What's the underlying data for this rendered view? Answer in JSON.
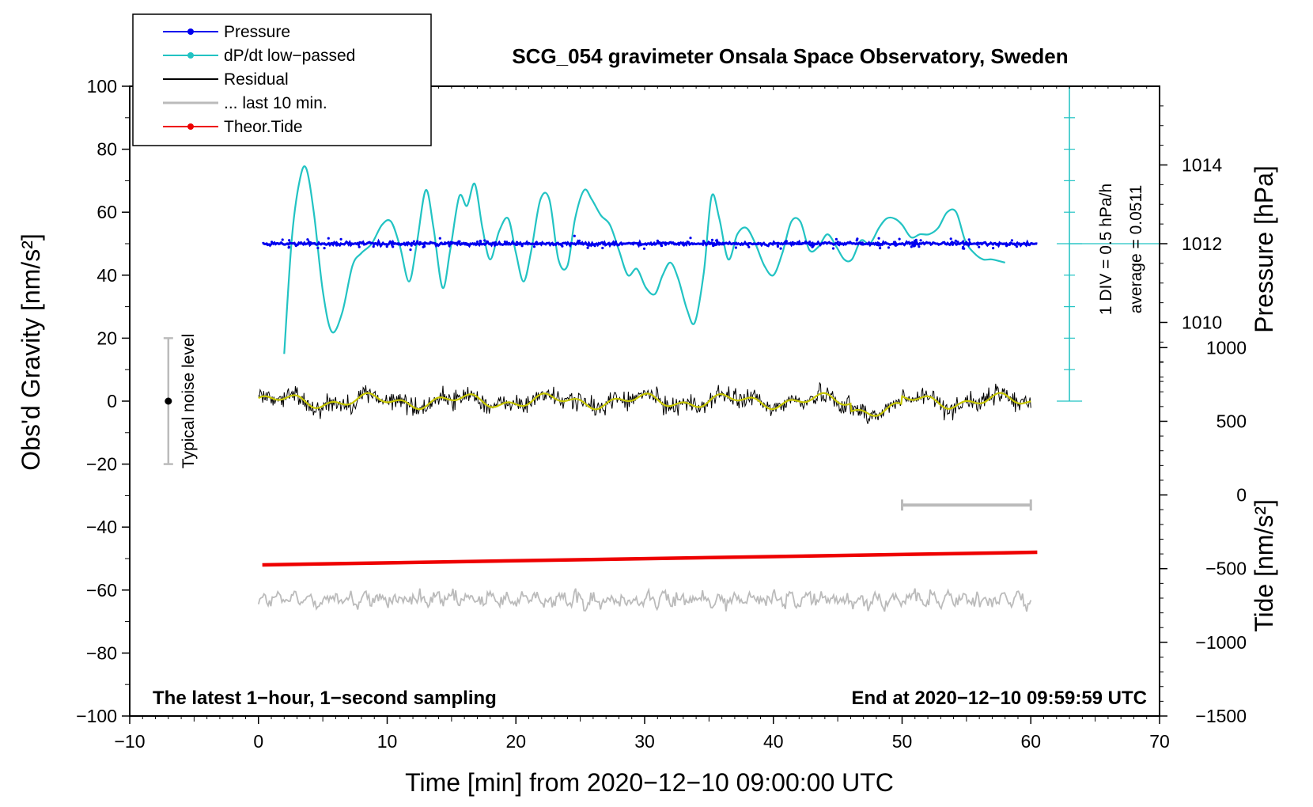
{
  "chart_data": {
    "type": "line",
    "title": "SCG_054 gravimeter Onsala Space Observatory, Sweden",
    "xlabel": "Time [min] from 2020−12−10 09:00:00 UTC",
    "ylabel_left": "Obs'd Gravity [nm/s²]",
    "ylabel_right_pressure": "Pressure [hPa]",
    "ylabel_right_tide": "Tide [nm/s²]",
    "xlim": [
      -10,
      70
    ],
    "ylim": [
      -100,
      100
    ],
    "x_ticks": [
      -10,
      0,
      10,
      20,
      30,
      40,
      50,
      60,
      70
    ],
    "x_tick_labels": [
      "−10",
      "0",
      "10",
      "20",
      "30",
      "40",
      "50",
      "60",
      "70"
    ],
    "y_ticks": [
      -100,
      -80,
      -60,
      -40,
      -20,
      0,
      20,
      40,
      60,
      80,
      100
    ],
    "y_tick_labels": [
      "−100",
      "−80",
      "−60",
      "−40",
      "−20",
      "0",
      "20",
      "40",
      "60",
      "80",
      "100"
    ],
    "pressure_axis": {
      "ticks": [
        1010,
        1012,
        1014
      ],
      "tick_labels": [
        "1010",
        "1012",
        "1014"
      ],
      "range": [
        1008,
        1016
      ]
    },
    "tide_axis": {
      "ticks": [
        -1500,
        -1000,
        -500,
        0,
        500,
        1000
      ],
      "tick_labels": [
        "−1500",
        "−1000",
        "−500",
        "0",
        "500",
        "1000"
      ],
      "range": [
        -1500,
        1000
      ]
    },
    "dpdt_scale": {
      "label": "1 DIV = 0.5 hPa/h",
      "average": "average = 0.0511",
      "x_position": 63,
      "y_range": [
        0,
        100
      ],
      "divisions": 10
    },
    "legend": [
      {
        "label": "Pressure",
        "color": "#0000ee",
        "marker": true
      },
      {
        "label": "dP/dt low−passed",
        "color": "#22c3c3",
        "marker": true
      },
      {
        "label": "Residual",
        "color": "#000000",
        "marker": false
      },
      {
        "label": "... last 10 min.",
        "color": "#bbbbbb",
        "marker": false
      },
      {
        "label": "Theor.Tide",
        "color": "#ee0000",
        "marker": true
      }
    ],
    "legend_position": "top-left",
    "noise_bar": {
      "label": "Typical noise level",
      "x": -7,
      "center": 0,
      "half_width": 20
    },
    "scale_bar_10min": {
      "x": [
        50,
        60
      ],
      "y": -33
    },
    "series": [
      {
        "name": "Pressure",
        "color": "#0000ee",
        "baseline": 50,
        "x_range": [
          0.3,
          60.5
        ],
        "jitter": 0.7
      },
      {
        "name": "dP/dt low−passed",
        "color": "#22c3c3",
        "x": [
          2.0,
          2.6,
          3.2,
          3.7,
          4.3,
          5.0,
          5.7,
          6.5,
          7.3,
          8.0,
          8.8,
          9.6,
          10.3,
          11.0,
          11.7,
          12.3,
          13.0,
          13.6,
          14.3,
          14.9,
          15.6,
          16.2,
          16.8,
          17.4,
          18.0,
          18.7,
          19.4,
          20.0,
          20.6,
          21.2,
          21.9,
          22.6,
          23.3,
          24.0,
          24.6,
          25.3,
          25.9,
          26.6,
          27.3,
          28.0,
          28.7,
          29.4,
          30.1,
          30.8,
          31.4,
          32.0,
          32.6,
          33.3,
          33.9,
          34.6,
          35.2,
          35.8,
          36.5,
          37.2,
          37.9,
          38.6,
          39.3,
          40.0,
          40.7,
          41.4,
          42.1,
          42.8,
          43.5,
          44.2,
          44.9,
          45.5,
          46.1,
          46.8,
          47.5,
          48.2,
          48.8,
          49.4,
          50.0,
          50.7,
          51.4,
          52.1,
          52.8,
          53.5,
          54.2,
          54.9,
          55.6,
          56.3,
          57.0,
          58.0
        ],
        "y": [
          15,
          52,
          70,
          74,
          60,
          35,
          22,
          28,
          43,
          47,
          50,
          56,
          57,
          49,
          38,
          50,
          67,
          55,
          36,
          48,
          65,
          62,
          69,
          55,
          45,
          54,
          58,
          47,
          38,
          48,
          64,
          64,
          45,
          43,
          58,
          67,
          64,
          59,
          56,
          48,
          40,
          42,
          36,
          34,
          40,
          44,
          39,
          29,
          25,
          41,
          65,
          58,
          45,
          53,
          55,
          50,
          43,
          40,
          47,
          57,
          57,
          48,
          49,
          53,
          49,
          45,
          45,
          51,
          50,
          55,
          58,
          58,
          56,
          52,
          53,
          53,
          55,
          60,
          60,
          51,
          47,
          45,
          45,
          44
        ]
      },
      {
        "name": "Residual",
        "color": "#000000",
        "smooth_color": "#c8c800",
        "baseline": 0,
        "x_range": [
          0.0,
          60.0
        ],
        "amplitude": 3.5
      },
      {
        "name": "... last 10 min.",
        "color": "#bbbbbb",
        "baseline": -63,
        "x_range": [
          0.0,
          60.0
        ],
        "amplitude": 3.5
      },
      {
        "name": "Theor.Tide",
        "color": "#ee0000",
        "x": [
          0.3,
          60.5
        ],
        "y": [
          -52,
          -48
        ]
      }
    ],
    "annotations": {
      "bottom_left": "The latest 1−hour, 1−second sampling",
      "bottom_right": "End at 2020−12−10 09:59:59 UTC"
    }
  }
}
